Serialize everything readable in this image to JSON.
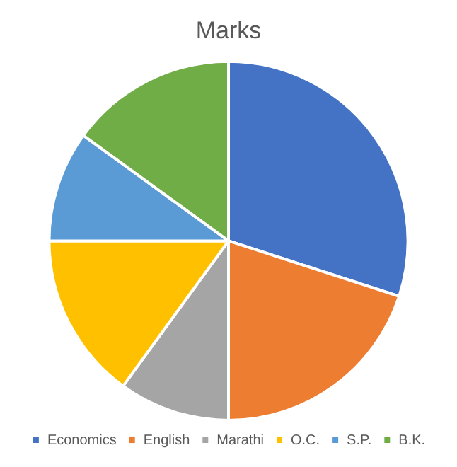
{
  "chart_data": {
    "type": "pie",
    "title": "Marks",
    "categories": [
      "Economics",
      "English",
      "Marathi",
      "O.C.",
      "S.P.",
      "B.K."
    ],
    "values": [
      30,
      20,
      10,
      15,
      10,
      15
    ],
    "colors": [
      "#4472c4",
      "#ed7d31",
      "#a5a5a5",
      "#ffc000",
      "#5b9bd5",
      "#70ad47"
    ],
    "legend": "bottom"
  }
}
